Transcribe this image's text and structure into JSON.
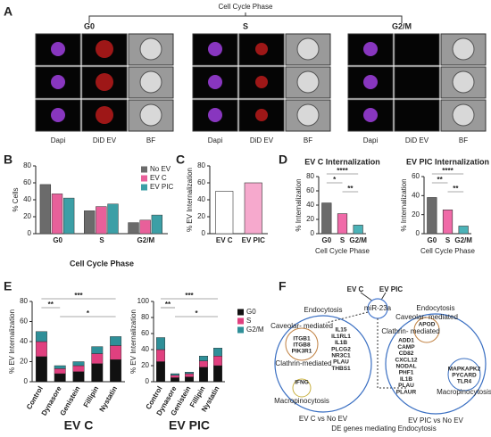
{
  "panel_labels": [
    "A",
    "B",
    "C",
    "D",
    "E",
    "F"
  ],
  "panel_a": {
    "title": "Cell Cycle Phase",
    "phases": [
      "G0",
      "S",
      "G2/M"
    ],
    "channels": [
      "Dapi",
      "DiD EV",
      "BF"
    ]
  },
  "chart_data": [
    {
      "type": "bar",
      "ylabel": "% Cells",
      "xlabel": "Cell Cycle Phase",
      "categories": [
        "G0",
        "S",
        "G2/M"
      ],
      "series": [
        {
          "name": "No EV",
          "color": "#6b6b6b",
          "values": [
            58,
            27,
            13
          ]
        },
        {
          "name": "EV C",
          "color": "#e8609a",
          "values": [
            47,
            32,
            16
          ]
        },
        {
          "name": "EV PIC",
          "color": "#3c9fa6",
          "values": [
            42,
            35,
            22
          ]
        }
      ],
      "ylim": [
        0,
        80
      ],
      "yticks": [
        0,
        20,
        40,
        60,
        80
      ],
      "legend": "upper right"
    },
    {
      "type": "bar",
      "ylabel": "% EV Internalization",
      "categories": [
        "EV C",
        "EV PIC"
      ],
      "values": [
        50,
        60
      ],
      "colors": [
        "#ffffff",
        "#f6a9cd"
      ],
      "ylim": [
        0,
        80
      ],
      "yticks": [
        0,
        20,
        40,
        60,
        80
      ]
    },
    {
      "type": "bar",
      "title": "EV C Internalization",
      "ylabel": "% Internalization",
      "xlabel": "Cell Cycle Phase",
      "categories": [
        "G0",
        "S",
        "G2/M"
      ],
      "values": [
        43,
        28,
        12
      ],
      "colors": [
        "#6b6b6b",
        "#f06aa8",
        "#4bb3b8"
      ],
      "ylim": [
        0,
        80
      ],
      "yticks": [
        0,
        20,
        40,
        60,
        80
      ],
      "annotations": [
        "****",
        "*",
        "**"
      ]
    },
    {
      "type": "bar",
      "title": "EV PIC  Internalization",
      "ylabel": "% Internalization",
      "xlabel": "Cell Cycle Phase",
      "categories": [
        "G0",
        "S",
        "G2/M"
      ],
      "values": [
        38,
        25,
        8
      ],
      "colors": [
        "#6b6b6b",
        "#f06aa8",
        "#4bb3b8"
      ],
      "ylim": [
        0,
        60
      ],
      "yticks": [
        0,
        20,
        40,
        60
      ],
      "annotations": [
        "****",
        "**",
        "**"
      ]
    },
    {
      "type": "stacked_bar",
      "title": "EV C",
      "ylabel": "% EV Internalization",
      "categories": [
        "Control",
        "Dynasore",
        "Genistein",
        "Fillipin",
        "Nystatin"
      ],
      "series": [
        {
          "name": "G0",
          "color": "#111111",
          "values": [
            25,
            8,
            10,
            18,
            22
          ]
        },
        {
          "name": "S",
          "color": "#e0407f",
          "values": [
            15,
            5,
            6,
            10,
            14
          ]
        },
        {
          "name": "G2/M",
          "color": "#2f8f98",
          "values": [
            10,
            3,
            4,
            7,
            9
          ]
        }
      ],
      "ylim": [
        0,
        80
      ],
      "yticks": [
        0,
        20,
        40,
        60,
        80
      ],
      "annotations": [
        "***",
        "**",
        "*"
      ]
    },
    {
      "type": "stacked_bar",
      "title": "EV PIC",
      "ylabel": "% EV Internalization",
      "categories": [
        "Control",
        "Dynasore",
        "Genistein",
        "Fillipin",
        "Nystatin"
      ],
      "series": [
        {
          "name": "G0",
          "color": "#111111",
          "values": [
            25,
            5,
            6,
            18,
            20
          ]
        },
        {
          "name": "S",
          "color": "#e0407f",
          "values": [
            15,
            3,
            4,
            8,
            12
          ]
        },
        {
          "name": "G2/M",
          "color": "#2f8f98",
          "values": [
            15,
            2,
            2,
            6,
            10
          ]
        }
      ],
      "ylim": [
        0,
        100
      ],
      "yticks": [
        0,
        20,
        40,
        60,
        80,
        100
      ],
      "annotations": [
        "***",
        "**",
        "*"
      ],
      "legend": "right"
    }
  ],
  "diagram": {
    "title": "DE genes mediating Endocytosis",
    "sources": [
      "EV C",
      "EV PIC"
    ],
    "mirna": "miR-23a",
    "left": {
      "heading": "Endocytosis",
      "caveolar": "Caveolar-\nmediated",
      "clathrin": "Clathrin-mediated",
      "macro": "Macropinocytosis",
      "caption": "EV C vs No EV",
      "caveolar_genes": [
        {
          "text": "ITGB1",
          "color": "#e08a1e"
        },
        {
          "text": "ITGB8",
          "color": "#e08a1e"
        },
        {
          "text": "PIK3R1",
          "color": "#e08a1e"
        }
      ],
      "clathrin_genes": [
        {
          "text": "IL15",
          "color": "#e0a81e"
        },
        {
          "text": "IL1RL1",
          "color": "#2a5fb0"
        },
        {
          "text": "IL1B",
          "color": "#2a5fb0"
        },
        {
          "text": "PLCG2",
          "color": "#2a5fb0"
        },
        {
          "text": "NR3C1",
          "color": "#e08a1e"
        },
        {
          "text": "PLAU",
          "color": "#2a5fb0"
        },
        {
          "text": "THBS1",
          "color": "#e0a81e"
        }
      ],
      "macro_genes": [
        {
          "text": "IFNG",
          "color": "#c8b01e"
        }
      ]
    },
    "right": {
      "heading": "Endocytosis",
      "caveolar": "Caveolar-\nmediated",
      "clathrin": "Clathrin-\nmediated",
      "macro": "Macropinocytosis",
      "caption": "EV PIC vs No EV",
      "caveolar_genes": [
        {
          "text": "APOD",
          "color": "#e08a1e"
        }
      ],
      "clathrin_genes": [
        {
          "text": "ADD1",
          "color": "#2a5fb0"
        },
        {
          "text": "CAMP",
          "color": "#e08a1e"
        },
        {
          "text": "CD82",
          "color": "#e08a1e"
        },
        {
          "text": "CXCL12",
          "color": "#e08a1e"
        },
        {
          "text": "NODAL",
          "color": "#e08a1e"
        },
        {
          "text": "PHF1",
          "color": "#e08a1e"
        },
        {
          "text": "IL1B",
          "color": "#2a5fb0"
        },
        {
          "text": "PLAU",
          "color": "#2a5fb0"
        },
        {
          "text": "PLAUR",
          "color": "#2a5fb0"
        }
      ],
      "macro_genes": [
        {
          "text": "MAPKAPK2",
          "color": "#2a5fb0"
        },
        {
          "text": "PYCARD",
          "color": "#e08a1e"
        },
        {
          "text": "TLR4",
          "color": "#e08a1e"
        }
      ]
    }
  }
}
